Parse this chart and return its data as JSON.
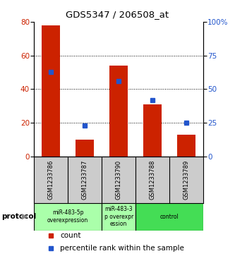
{
  "title": "GDS5347 / 206508_at",
  "categories": [
    "GSM1233786",
    "GSM1233787",
    "GSM1233790",
    "GSM1233788",
    "GSM1233789"
  ],
  "bar_values": [
    78,
    10,
    54,
    31,
    13
  ],
  "percentile_values": [
    63,
    23,
    56,
    42,
    25
  ],
  "bar_color": "#cc2200",
  "marker_color": "#2255cc",
  "ylim_left": [
    0,
    80
  ],
  "ylim_right": [
    0,
    100
  ],
  "yticks_left": [
    0,
    20,
    40,
    60,
    80
  ],
  "yticks_right": [
    0,
    25,
    50,
    75,
    100
  ],
  "yticklabels_right": [
    "0",
    "25",
    "50",
    "75",
    "100%"
  ],
  "grid_values": [
    20,
    40,
    60
  ],
  "bg_color": "#ffffff",
  "sample_box_color": "#cccccc",
  "protocol_light_color": "#aaffaa",
  "protocol_dark_color": "#44dd55",
  "legend_count_label": "count",
  "legend_pct_label": "percentile rank within the sample",
  "bar_width": 0.55,
  "group_defs": [
    {
      "start": 0,
      "end": 1,
      "label": "miR-483-5p\noverexpression",
      "color": "#aaffaa"
    },
    {
      "start": 2,
      "end": 2,
      "label": "miR-483-3\np overexpr\nession",
      "color": "#aaffaa"
    },
    {
      "start": 3,
      "end": 4,
      "label": "control",
      "color": "#44dd55"
    }
  ]
}
